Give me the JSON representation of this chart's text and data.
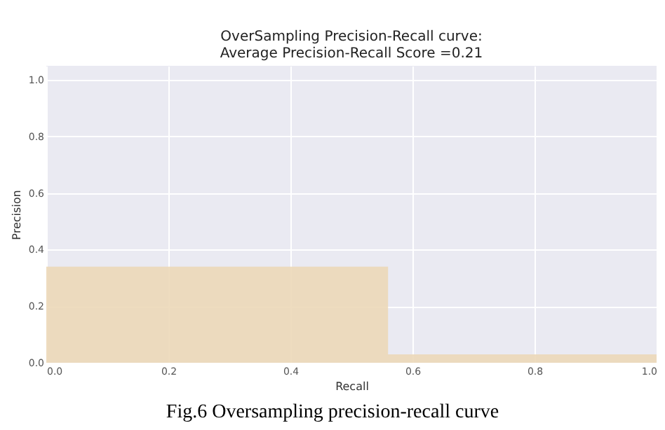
{
  "chart_data": {
    "type": "area",
    "title": "OverSampling Precision-Recall curve:\nAverage Precision-Recall Score =0.21",
    "xlabel": "Recall",
    "ylabel": "Precision",
    "x": [
      0,
      0.56,
      0.56,
      1.0
    ],
    "series": [
      {
        "color": "#ecd8b8",
        "values": [
          0.34,
          0.34,
          0.03,
          0.03
        ]
      }
    ],
    "xlim": [
      0,
      1.0
    ],
    "ylim": [
      0,
      1.05
    ],
    "xticks": [
      {
        "value": 0,
        "label": "0.0"
      },
      0.2,
      0.4,
      0.6,
      0.8,
      {
        "value": 1,
        "label": "1.0"
      }
    ],
    "yticks": [
      {
        "value": 0,
        "label": "0.0"
      },
      0.2,
      0.4,
      0.6,
      0.8,
      {
        "value": 1,
        "label": "1.0"
      }
    ],
    "grid": true,
    "annotations": [
      "Fig.6 Oversampling precision-recall curve"
    ]
  }
}
